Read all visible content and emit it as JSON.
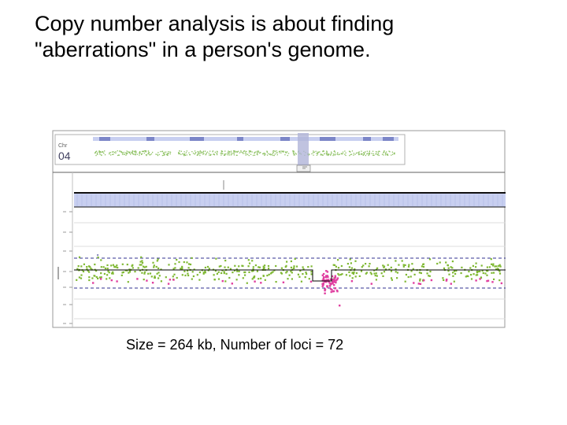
{
  "slide": {
    "title_lines": [
      "Copy number analysis is about finding",
      "\"aberrations\" in a person's genome."
    ],
    "caption": "Size = 264 kb, Number of loci = 72"
  },
  "screenshot": {
    "chromosome_label": "Chr",
    "chromosome_number": "04",
    "colors": {
      "normal_point": "#7fb832",
      "aberrant_point": "#e040a0",
      "overview_point": "#8cc060",
      "band_fill": "#c8cff0",
      "highlight": "#b0b4d8",
      "threshold_line": "#303090",
      "segment_line": "#000000"
    }
  }
}
